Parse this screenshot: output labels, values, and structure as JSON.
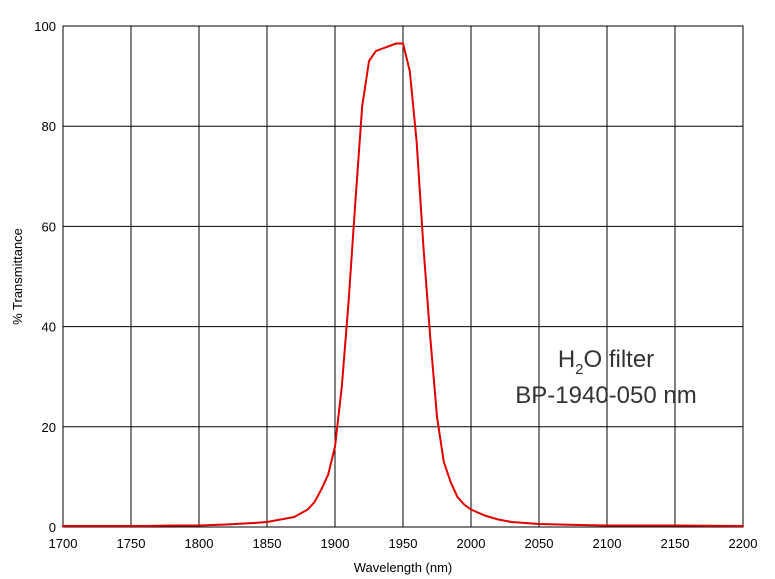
{
  "chart_data": {
    "type": "line",
    "title": "",
    "xlabel": "Wavelength (nm)",
    "ylabel": "% Transmittance",
    "xlim": [
      1700,
      2200
    ],
    "ylim": [
      0,
      100
    ],
    "xticks": [
      1700,
      1750,
      1800,
      1850,
      1900,
      1950,
      2000,
      2050,
      2100,
      2150,
      2200
    ],
    "yticks": [
      0,
      20,
      40,
      60,
      80,
      100
    ],
    "grid": true,
    "annotation": {
      "line1_prefix": "H",
      "line1_sub": "2",
      "line1_suffix": "O filter",
      "line2": "BP-1940-050 nm"
    },
    "colors": {
      "series": "#e00000",
      "grid": "#000000"
    },
    "series": [
      {
        "color": "#e00000",
        "x": [
          1700,
          1720,
          1740,
          1760,
          1780,
          1800,
          1820,
          1840,
          1850,
          1860,
          1870,
          1880,
          1885,
          1890,
          1895,
          1900,
          1905,
          1910,
          1915,
          1920,
          1925,
          1930,
          1935,
          1940,
          1945,
          1950,
          1955,
          1960,
          1965,
          1970,
          1975,
          1980,
          1985,
          1990,
          1995,
          2000,
          2010,
          2020,
          2030,
          2050,
          2080,
          2100,
          2150,
          2200
        ],
        "y": [
          0.2,
          0.2,
          0.2,
          0.2,
          0.3,
          0.3,
          0.5,
          0.8,
          1.0,
          1.5,
          2.0,
          3.5,
          5.0,
          7.5,
          10.5,
          16.0,
          28.0,
          45.0,
          65.0,
          84.0,
          93.0,
          95.0,
          95.5,
          96.0,
          96.5,
          96.5,
          91.0,
          77.0,
          56.0,
          38.0,
          22.0,
          13.0,
          9.0,
          6.0,
          4.5,
          3.5,
          2.3,
          1.5,
          1.0,
          0.6,
          0.4,
          0.3,
          0.3,
          0.2
        ]
      }
    ]
  }
}
